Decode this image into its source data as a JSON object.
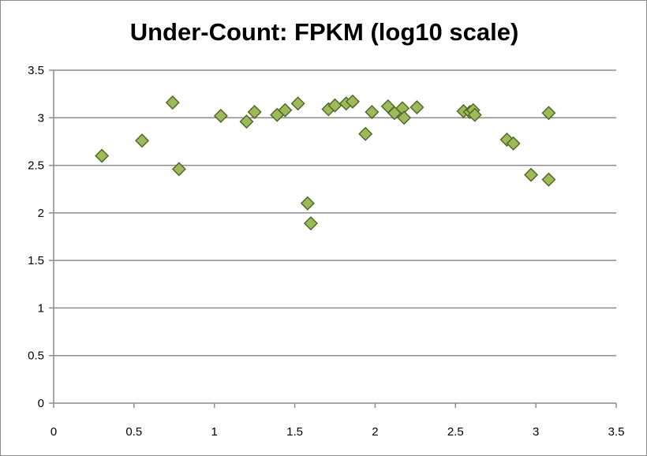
{
  "chart_data": {
    "type": "scatter",
    "title": "Under-Count: FPKM (log10 scale)",
    "xlabel": "",
    "ylabel": "",
    "xlim": [
      0,
      3.5
    ],
    "ylim": [
      0,
      3.5
    ],
    "x_ticks": [
      "0",
      "0.5",
      "1",
      "1.5",
      "2",
      "2.5",
      "3",
      "3.5"
    ],
    "y_ticks": [
      "0",
      "0.5",
      "1",
      "1.5",
      "2",
      "2.5",
      "3",
      "3.5"
    ],
    "grid": "horizontal",
    "legend": "none",
    "marker": "diamond",
    "marker_color": "#9bbb59",
    "marker_edge_color": "#4f6228",
    "points": [
      {
        "x": 0.3,
        "y": 2.6
      },
      {
        "x": 0.55,
        "y": 2.76
      },
      {
        "x": 0.74,
        "y": 3.16
      },
      {
        "x": 0.78,
        "y": 2.46
      },
      {
        "x": 1.04,
        "y": 3.02
      },
      {
        "x": 1.2,
        "y": 2.96
      },
      {
        "x": 1.25,
        "y": 3.06
      },
      {
        "x": 1.39,
        "y": 3.03
      },
      {
        "x": 1.44,
        "y": 3.08
      },
      {
        "x": 1.52,
        "y": 3.15
      },
      {
        "x": 1.58,
        "y": 2.1
      },
      {
        "x": 1.6,
        "y": 1.89
      },
      {
        "x": 1.71,
        "y": 3.09
      },
      {
        "x": 1.75,
        "y": 3.13
      },
      {
        "x": 1.82,
        "y": 3.15
      },
      {
        "x": 1.86,
        "y": 3.17
      },
      {
        "x": 1.94,
        "y": 2.83
      },
      {
        "x": 1.98,
        "y": 3.06
      },
      {
        "x": 2.08,
        "y": 3.12
      },
      {
        "x": 2.12,
        "y": 3.05
      },
      {
        "x": 2.17,
        "y": 3.1
      },
      {
        "x": 2.18,
        "y": 3.0
      },
      {
        "x": 2.26,
        "y": 3.11
      },
      {
        "x": 2.55,
        "y": 3.07
      },
      {
        "x": 2.59,
        "y": 3.06
      },
      {
        "x": 2.61,
        "y": 3.08
      },
      {
        "x": 2.62,
        "y": 3.03
      },
      {
        "x": 2.82,
        "y": 2.77
      },
      {
        "x": 2.86,
        "y": 2.73
      },
      {
        "x": 2.97,
        "y": 2.4
      },
      {
        "x": 3.08,
        "y": 3.05
      },
      {
        "x": 3.08,
        "y": 2.35
      }
    ]
  }
}
